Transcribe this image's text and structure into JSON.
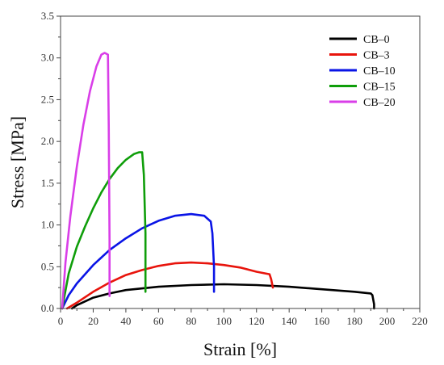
{
  "chart_data": {
    "type": "line",
    "xlabel": "Strain [%]",
    "ylabel": "Stress [MPa]",
    "xlim": [
      0,
      220
    ],
    "ylim": [
      0,
      3.5
    ],
    "xticks": [
      0,
      20,
      40,
      60,
      80,
      100,
      120,
      140,
      160,
      180,
      200,
      220
    ],
    "yticks": [
      0.0,
      0.5,
      1.0,
      1.5,
      2.0,
      2.5,
      3.0,
      3.5
    ],
    "ytick_labels": [
      "0.0",
      "0.5",
      "1.0",
      "1.5",
      "2.0",
      "2.5",
      "3.0",
      "3.5"
    ],
    "grid": false,
    "legend": "top-right",
    "series": [
      {
        "name": "CB–0",
        "color": "#000000",
        "x": [
          7,
          10,
          20,
          30,
          40,
          60,
          80,
          100,
          120,
          140,
          160,
          180,
          190,
          191,
          192,
          192
        ],
        "y": [
          0.0,
          0.04,
          0.13,
          0.18,
          0.22,
          0.26,
          0.28,
          0.29,
          0.28,
          0.26,
          0.23,
          0.2,
          0.18,
          0.16,
          0.05,
          0.0
        ]
      },
      {
        "name": "CB–3",
        "color": "#e8140c",
        "x": [
          4,
          10,
          20,
          30,
          40,
          50,
          60,
          70,
          80,
          90,
          100,
          110,
          120,
          128,
          129,
          130
        ],
        "y": [
          0.0,
          0.07,
          0.2,
          0.31,
          0.4,
          0.46,
          0.51,
          0.54,
          0.55,
          0.54,
          0.52,
          0.49,
          0.44,
          0.41,
          0.35,
          0.25
        ]
      },
      {
        "name": "CB–10",
        "color": "#0a14e6",
        "x": [
          1,
          5,
          10,
          20,
          30,
          40,
          50,
          60,
          70,
          80,
          88,
          92,
          93,
          94,
          94
        ],
        "y": [
          0.0,
          0.16,
          0.3,
          0.52,
          0.7,
          0.84,
          0.96,
          1.05,
          1.11,
          1.13,
          1.11,
          1.04,
          0.9,
          0.5,
          0.2
        ]
      },
      {
        "name": "CB–15",
        "color": "#0f9e0a",
        "x": [
          1,
          5,
          10,
          15,
          20,
          25,
          30,
          35,
          40,
          45,
          48,
          50,
          51,
          52,
          52
        ],
        "y": [
          0.0,
          0.42,
          0.74,
          0.98,
          1.2,
          1.39,
          1.55,
          1.68,
          1.78,
          1.85,
          1.87,
          1.87,
          1.6,
          0.9,
          0.2
        ]
      },
      {
        "name": "CB–20",
        "color": "#d93ee8",
        "x": [
          1,
          3,
          6,
          10,
          14,
          18,
          22,
          25,
          27,
          28,
          29,
          29.5,
          30,
          30
        ],
        "y": [
          0.0,
          0.55,
          1.1,
          1.7,
          2.2,
          2.6,
          2.9,
          3.04,
          3.06,
          3.05,
          3.04,
          2.2,
          0.8,
          0.15
        ]
      }
    ]
  }
}
